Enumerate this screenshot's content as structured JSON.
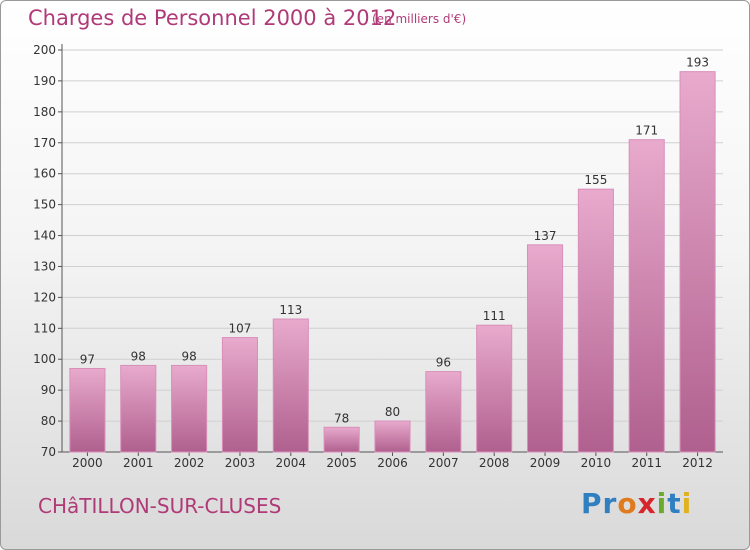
{
  "header": {
    "title": "Charges de Personnel 2000 à 2012",
    "subtitle": "(en milliers d'€)"
  },
  "footer": {
    "commune": "CHâTILLON-SUR-CLUSES",
    "logo_text": "Proxiti",
    "logo_letters": [
      {
        "char": "P",
        "color": "#2f7fc1"
      },
      {
        "char": "r",
        "color": "#2f7fc1"
      },
      {
        "char": "o",
        "color": "#e07a1f"
      },
      {
        "char": "x",
        "color": "#d6262c"
      },
      {
        "char": "i",
        "color": "#6aab2e"
      },
      {
        "char": "t",
        "color": "#2f7fc1"
      },
      {
        "char": "i",
        "color": "#e0b21f"
      }
    ]
  },
  "colors": {
    "accent": "#b03a78",
    "bar_top": "#e8aacd",
    "bar_bottom": "#b0608e",
    "grid": "#d0d0d0"
  },
  "chart_data": {
    "type": "bar",
    "title": "Charges de Personnel 2000 à 2012",
    "subtitle": "(en milliers d'€)",
    "categories": [
      "2000",
      "2001",
      "2002",
      "2003",
      "2004",
      "2005",
      "2006",
      "2007",
      "2008",
      "2009",
      "2010",
      "2011",
      "2012"
    ],
    "values": [
      97,
      98,
      98,
      107,
      113,
      78,
      80,
      96,
      111,
      137,
      155,
      171,
      193
    ],
    "ylim": [
      70,
      200
    ],
    "yticks": [
      70,
      80,
      90,
      100,
      110,
      120,
      130,
      140,
      150,
      160,
      170,
      180,
      190,
      200
    ],
    "grid": true,
    "legend": "none"
  }
}
